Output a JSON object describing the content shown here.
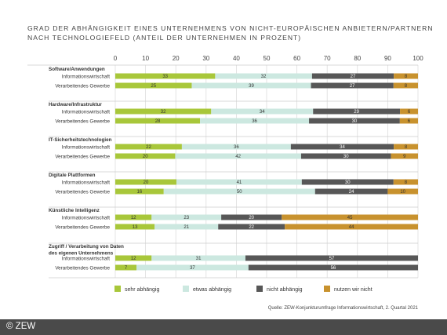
{
  "chart_data": {
    "type": "bar",
    "stacked": true,
    "orientation": "horizontal",
    "title_line1": "GRAD DER ABHÄNGIGKEIT EINES UNTERNEHMENS VON NICHT-EUROPÄISCHEN ANBIETERN/PARTNERN",
    "title_line2": "NACH TECHNOLOGIEFELD (ANTEIL DER UNTERNEHMEN IN PROZENT)",
    "xlim": [
      0,
      100
    ],
    "xticks": [
      "0",
      "10",
      "20",
      "30",
      "40",
      "50",
      "60",
      "70",
      "80",
      "90",
      "100"
    ],
    "grid": true,
    "legend_position": "bottom",
    "series_names": [
      "sehr abhängig",
      "etwas abhängig",
      "nicht abhängig",
      "nutzen wir nicht"
    ],
    "colors": [
      "#a8c73a",
      "#cce8e0",
      "#575757",
      "#c8922e"
    ],
    "groups": [
      {
        "label": "Software/Anwendungen",
        "rows": [
          {
            "label": "Informationswirtschaft",
            "values": [
              33,
              32,
              27,
              8
            ]
          },
          {
            "label": "Verarbeitendes Gewerbe",
            "values": [
              25,
              39,
              27,
              8
            ]
          }
        ]
      },
      {
        "label": "Hardware/Infrastruktur",
        "rows": [
          {
            "label": "Informationswirtschaft",
            "values": [
              32,
              34,
              29,
              6
            ]
          },
          {
            "label": "Verarbeitendes Gewerbe",
            "values": [
              28,
              36,
              30,
              6
            ]
          }
        ]
      },
      {
        "label": "IT-Sicherheitstechnologien",
        "rows": [
          {
            "label": "Informationswirtschaft",
            "values": [
              22,
              36,
              34,
              8
            ]
          },
          {
            "label": "Verarbeitendes Gewerbe",
            "values": [
              20,
              42,
              30,
              9
            ]
          }
        ]
      },
      {
        "label": "Digitale Plattformen",
        "rows": [
          {
            "label": "Informationswirtschaft",
            "values": [
              20,
              41,
              30,
              8
            ]
          },
          {
            "label": "Verarbeitendes Gewerbe",
            "values": [
              16,
              50,
              24,
              10
            ]
          }
        ]
      },
      {
        "label": "Künstliche Intelligenz",
        "rows": [
          {
            "label": "Informationswirtschaft",
            "values": [
              12,
              23,
              20,
              45
            ]
          },
          {
            "label": "Verarbeitendes Gewerbe",
            "values": [
              13,
              21,
              22,
              44
            ]
          }
        ]
      },
      {
        "label": "Zugriff / Verarbeitung von Daten des eigenen Unternehmens",
        "label_lines": [
          "Zugriff / Verarbeitung von Daten",
          "des eigenen Unternehmens"
        ],
        "rows": [
          {
            "label": "Informationswirtschaft",
            "values": [
              12,
              31,
              57
            ]
          },
          {
            "label": "Verarbeitendes Gewerbe",
            "values": [
              7,
              37,
              56
            ]
          }
        ]
      }
    ],
    "source": "Quelle: ZEW-Konjunkturumfrage Informationswirtschaft, 2. Quartal 2021"
  },
  "copyright": "© ZEW"
}
